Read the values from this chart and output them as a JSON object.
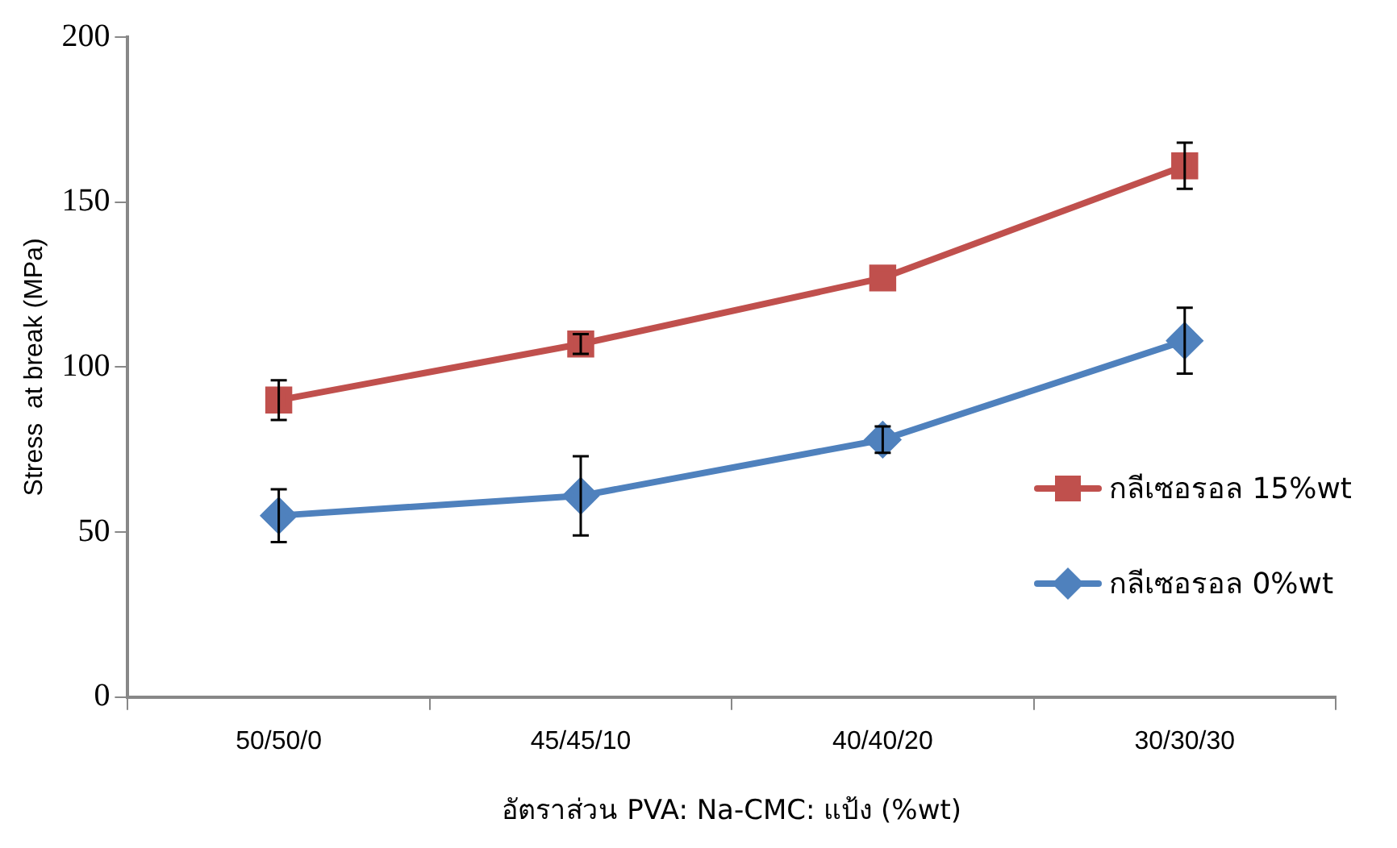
{
  "chart_data": {
    "type": "line",
    "xlabel": "อัตราส่วน PVA: Na-CMC: แป้ง (%wt)",
    "ylabel": "Stress  at break (MPa)",
    "categories": [
      "50/50/0",
      "45/45/10",
      "40/40/20",
      "30/30/30"
    ],
    "series": [
      {
        "name": "กลีเซอรอล 15%wt",
        "color": "#c0504d",
        "marker": "square",
        "values": [
          90,
          107,
          127,
          161
        ],
        "errors": [
          6,
          3,
          null,
          7
        ]
      },
      {
        "name": "กลีเซอรอล 0%wt",
        "color": "#4f81bd",
        "marker": "diamond",
        "values": [
          55,
          61,
          78,
          108
        ],
        "errors": [
          8,
          12,
          4,
          10
        ]
      }
    ],
    "ylim": [
      0,
      200
    ],
    "yticks": [
      0,
      50,
      100,
      150,
      200
    ],
    "grid": false,
    "legend": "right",
    "line_style": "solid"
  }
}
